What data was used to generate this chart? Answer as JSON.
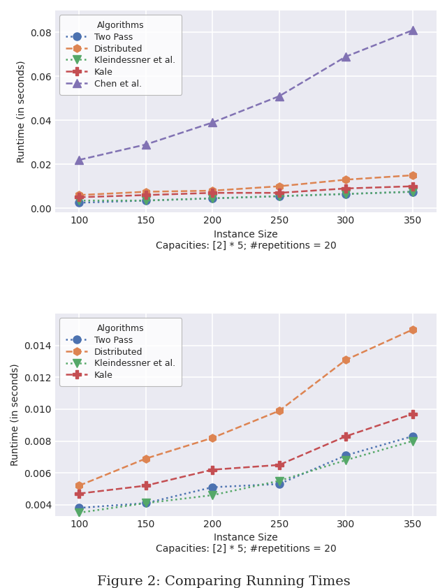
{
  "x": [
    100,
    150,
    200,
    250,
    300,
    350
  ],
  "plot1": {
    "two_pass": [
      0.0025,
      0.0035,
      0.0045,
      0.0055,
      0.0065,
      0.0075
    ],
    "distributed": [
      0.006,
      0.0075,
      0.008,
      0.01,
      0.013,
      0.015
    ],
    "kleindessner": [
      0.0035,
      0.0035,
      0.0045,
      0.0055,
      0.0065,
      0.0075
    ],
    "kale": [
      0.005,
      0.006,
      0.007,
      0.007,
      0.009,
      0.01
    ],
    "chen": [
      0.022,
      0.029,
      0.039,
      0.051,
      0.069,
      0.081
    ],
    "ylim": [
      -0.002,
      0.09
    ],
    "yticks": [
      0.0,
      0.02,
      0.04,
      0.06,
      0.08
    ]
  },
  "plot2": {
    "two_pass": [
      0.0038,
      0.0041,
      0.0051,
      0.0053,
      0.0071,
      0.0083
    ],
    "distributed": [
      0.0052,
      0.0069,
      0.0082,
      0.0099,
      0.0131,
      0.015
    ],
    "kleindessner": [
      0.0035,
      0.0041,
      0.0046,
      0.0055,
      0.0068,
      0.008
    ],
    "kale": [
      0.0047,
      0.0052,
      0.0062,
      0.0065,
      0.0083,
      0.0097
    ],
    "ylim": [
      0.0033,
      0.016
    ],
    "yticks": [
      0.004,
      0.006,
      0.008,
      0.01,
      0.012,
      0.014
    ]
  },
  "colors": {
    "two_pass": "#4c72b0",
    "distributed": "#dd8452",
    "kleindessner": "#55a868",
    "kale": "#c44e52",
    "chen": "#8172b3"
  },
  "bg_color": "#eaeaf2",
  "grid_color": "#ffffff",
  "xlabel": "Instance Size",
  "ylabel": "Runtime (in seconds)",
  "caption1": "Capacities: [2] * 5; #repetitions = 20",
  "caption2": "Capacities: [2] * 5; #repetitions = 20",
  "figure_caption": "Figure 2: Comparing Running Times"
}
